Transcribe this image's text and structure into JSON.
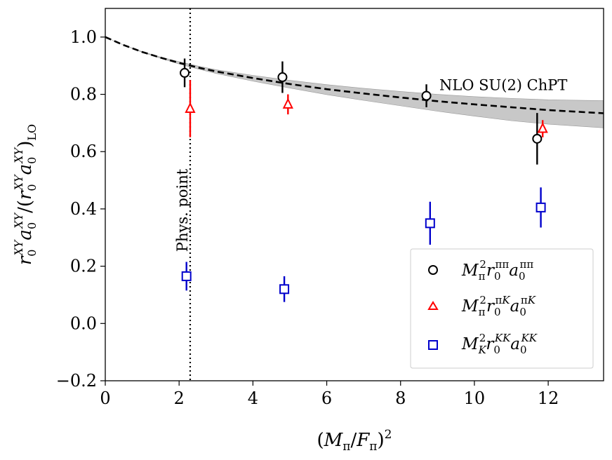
{
  "chart_data": {
    "type": "scatter",
    "title": "",
    "xlabel": "(M_π/F_π)^2",
    "ylabel": "r_0^XY a_0^XY / (r_0^XY a_0^XY)_LO",
    "xlim": [
      0,
      13.5
    ],
    "ylim": [
      -0.2,
      1.1
    ],
    "xticks": [
      0,
      2,
      4,
      6,
      8,
      10,
      12
    ],
    "yticks": [
      -0.2,
      0.0,
      0.2,
      0.4,
      0.6,
      0.8,
      1.0
    ],
    "xtick_labels": [
      "0",
      "2",
      "4",
      "6",
      "8",
      "10",
      "12"
    ],
    "ytick_labels": [
      "−0.2",
      "0.0",
      "0.2",
      "0.4",
      "0.6",
      "0.8",
      "1.0"
    ],
    "grid": false,
    "legend_position": "bottom-right",
    "series": [
      {
        "name": "M_π^2 r_0^ππ a_0^ππ",
        "marker": "circle",
        "color": "#000000",
        "x": [
          2.15,
          4.8,
          8.7,
          11.7
        ],
        "y": [
          0.875,
          0.86,
          0.795,
          0.645
        ],
        "err": [
          0.05,
          0.055,
          0.04,
          0.09
        ]
      },
      {
        "name": "M_π^2 r_0^πK a_0^πK",
        "marker": "triangle",
        "color": "#ff0000",
        "x": [
          2.3,
          4.95,
          8.7,
          11.85
        ],
        "y": [
          0.75,
          0.765,
          0.0,
          0.68
        ],
        "err": [
          0.1,
          0.035,
          0.0,
          0.03
        ],
        "present": [
          true,
          true,
          false,
          true
        ]
      },
      {
        "name": "M_K^2 r_0^KK a_0^KK",
        "marker": "square",
        "color": "#0000cc",
        "x": [
          2.2,
          4.85,
          8.8,
          11.8
        ],
        "y": [
          0.165,
          0.12,
          0.35,
          0.405
        ],
        "err": [
          0.05,
          0.045,
          0.075,
          0.07
        ]
      }
    ],
    "curve": {
      "label": "NLO SU(2) ChPT",
      "style": "dashed",
      "color": "#000000",
      "band_color": "#c8c8c8",
      "x": [
        0,
        0.5,
        1,
        1.5,
        2,
        2.5,
        3,
        4,
        5,
        6,
        7,
        8,
        9,
        10,
        11,
        12,
        13.5
      ],
      "y": [
        1.0,
        0.972,
        0.948,
        0.928,
        0.91,
        0.894,
        0.88,
        0.857,
        0.836,
        0.818,
        0.803,
        0.789,
        0.776,
        0.765,
        0.755,
        0.745,
        0.734
      ],
      "band_lo": [
        1.0,
        0.972,
        0.947,
        0.926,
        0.906,
        0.889,
        0.873,
        0.846,
        0.822,
        0.799,
        0.779,
        0.76,
        0.741,
        0.724,
        0.708,
        0.696,
        0.683
      ],
      "band_hi": [
        1.0,
        0.972,
        0.949,
        0.93,
        0.914,
        0.899,
        0.886,
        0.866,
        0.849,
        0.834,
        0.821,
        0.81,
        0.8,
        0.792,
        0.786,
        0.781,
        0.778
      ]
    },
    "vertical_line": {
      "x": 2.3,
      "label": "Phys. point",
      "style": "dotted"
    }
  }
}
